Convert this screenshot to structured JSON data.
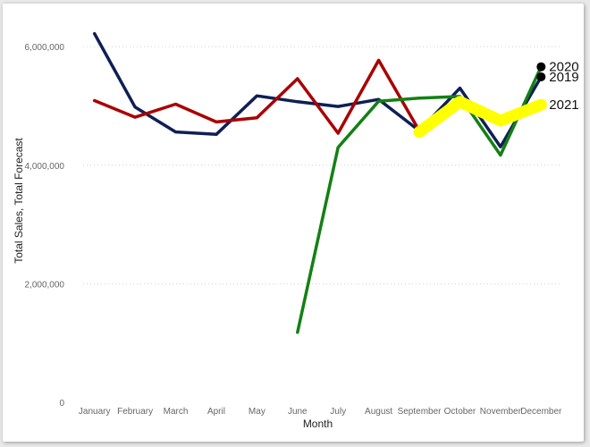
{
  "chart_data": {
    "type": "line",
    "xlabel": "Month",
    "ylabel": "Total Sales, Total Forecast",
    "ylim": [
      0,
      6500000
    ],
    "yticks": [
      0,
      2000000,
      4000000,
      6000000
    ],
    "ytick_labels": [
      "0",
      "2,000,000",
      "4,000,000",
      "6,000,000"
    ],
    "grid": true,
    "categories": [
      "January",
      "February",
      "March",
      "April",
      "May",
      "June",
      "July",
      "August",
      "September",
      "October",
      "November",
      "December"
    ],
    "series": [
      {
        "name": "2019",
        "color": "#0f1f55",
        "values": [
          6220000,
          4980000,
          4560000,
          4520000,
          5170000,
          5070000,
          4990000,
          5110000,
          4580000,
          5300000,
          4310000,
          5490000
        ],
        "end_marker": true
      },
      {
        "name": "2020",
        "color": "#aa0000",
        "values": [
          5090000,
          4810000,
          5030000,
          4730000,
          4800000,
          5460000,
          4540000,
          5770000,
          4580000,
          null,
          null,
          5660000
        ],
        "end_marker": true
      },
      {
        "name": "",
        "color": "#138013",
        "values": [
          null,
          null,
          null,
          null,
          null,
          1180000,
          4300000,
          5080000,
          5130000,
          5160000,
          4170000,
          5660000
        ],
        "end_marker": false
      },
      {
        "name": "2021",
        "color": "#ffff00",
        "values": [
          null,
          null,
          null,
          null,
          null,
          null,
          null,
          null,
          4560000,
          5070000,
          4750000,
          5020000
        ],
        "end_marker": false,
        "thick": true
      }
    ]
  }
}
